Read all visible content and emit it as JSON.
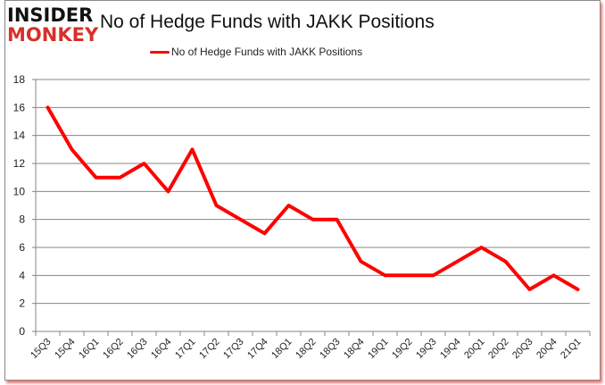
{
  "logo": {
    "line1": "INSIDER",
    "line2": "MONKEY"
  },
  "title": "No of Hedge Funds with JAKK Positions",
  "legend": {
    "label": "No of Hedge Funds with JAKK Positions",
    "color": "#ff0000"
  },
  "colors": {
    "line": "#ff0000",
    "grid": "#868686",
    "frame_shadow": "#e00000"
  },
  "chart_data": {
    "type": "line",
    "title": "No of Hedge Funds with JAKK Positions",
    "xlabel": "",
    "ylabel": "",
    "ylim": [
      0,
      18
    ],
    "yticks": [
      0,
      2,
      4,
      6,
      8,
      10,
      12,
      14,
      16,
      18
    ],
    "grid": true,
    "legend_position": "top",
    "categories": [
      "15Q3",
      "15Q4",
      "16Q1",
      "16Q2",
      "16Q3",
      "16Q4",
      "17Q1",
      "17Q2",
      "17Q3",
      "17Q4",
      "18Q1",
      "18Q2",
      "18Q3",
      "18Q4",
      "19Q1",
      "19Q2",
      "19Q3",
      "19Q4",
      "20Q1",
      "20Q2",
      "20Q3",
      "20Q4",
      "21Q1"
    ],
    "series": [
      {
        "name": "No of Hedge Funds with JAKK Positions",
        "values": [
          16,
          13,
          11,
          11,
          12,
          10,
          13,
          9,
          8,
          7,
          9,
          8,
          8,
          5,
          4,
          4,
          4,
          5,
          6,
          5,
          3,
          4,
          3
        ]
      }
    ]
  }
}
